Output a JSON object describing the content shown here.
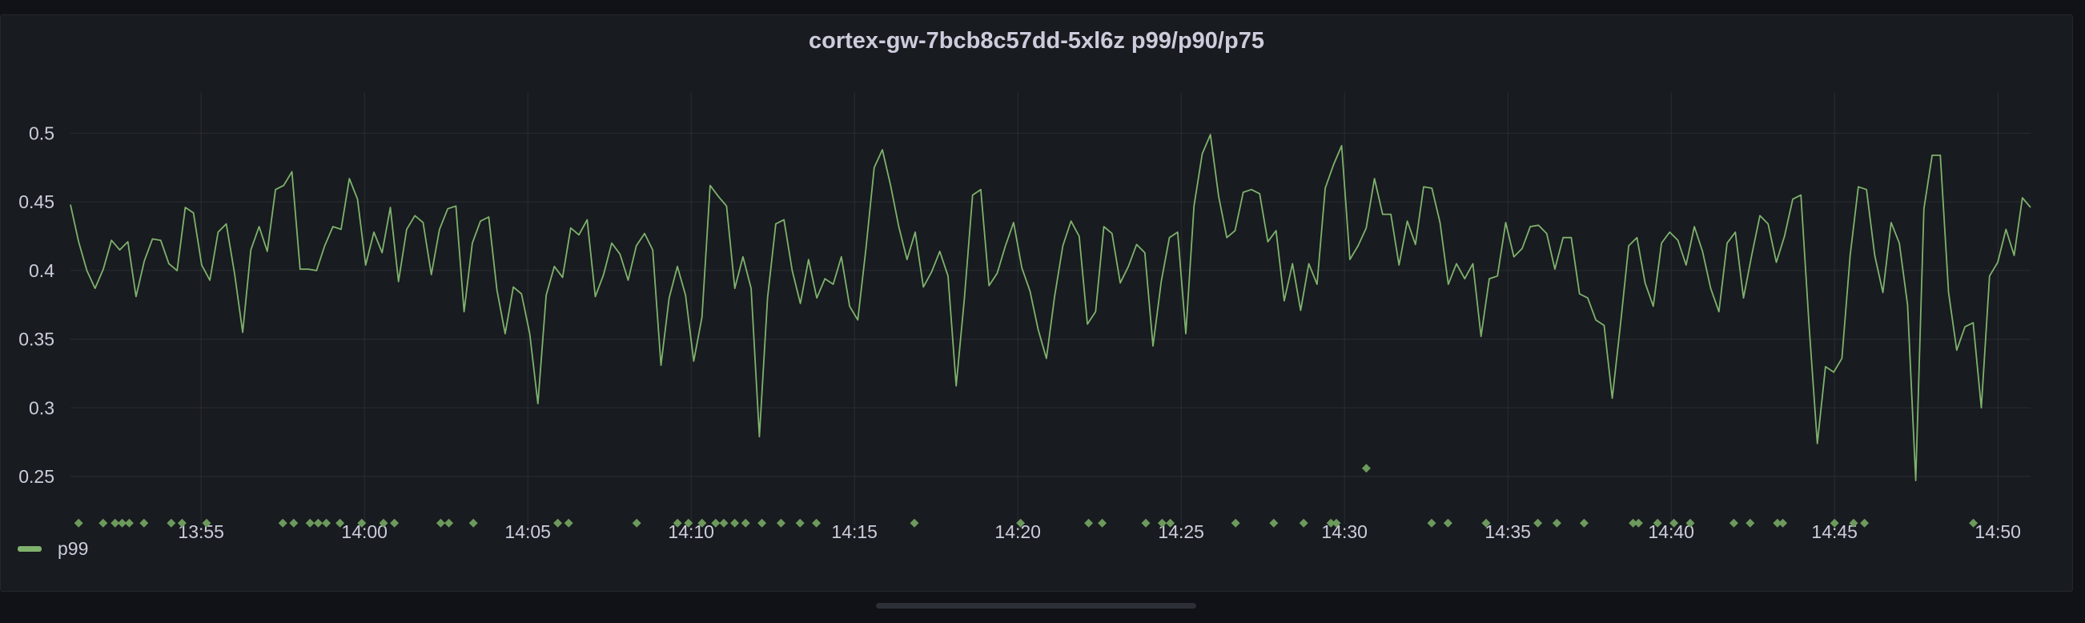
{
  "panel": {
    "title": "cortex-gw-7bcb8c57dd-5xl6z p99/p90/p75"
  },
  "legend": {
    "items": [
      {
        "label": "p99",
        "color": "#7eb26d"
      }
    ]
  },
  "chart_data": {
    "type": "line",
    "title": "cortex-gw-7bcb8c57dd-5xl6z p99/p90/p75",
    "xlabel": "",
    "ylabel": "",
    "x_start": "13:51",
    "x_end": "14:51",
    "x_ticks": [
      "13:55",
      "14:00",
      "14:05",
      "14:10",
      "14:15",
      "14:20",
      "14:25",
      "14:30",
      "14:35",
      "14:40",
      "14:45",
      "14:50"
    ],
    "y_ticks": [
      "0.25",
      "0.3",
      "0.35",
      "0.4",
      "0.45",
      "0.5"
    ],
    "ylim": [
      0.215,
      0.53
    ],
    "grid": true,
    "legend_placement": "bottom-left",
    "series": [
      {
        "name": "p99",
        "color": "#7eb26d",
        "values": [
          0.448,
          0.421,
          0.4,
          0.387,
          0.401,
          0.422,
          0.415,
          0.421,
          0.381,
          0.407,
          0.423,
          0.422,
          0.405,
          0.4,
          0.446,
          0.442,
          0.404,
          0.393,
          0.428,
          0.434,
          0.398,
          0.355,
          0.415,
          0.432,
          0.414,
          0.459,
          0.462,
          0.472,
          0.401,
          0.401,
          0.4,
          0.418,
          0.432,
          0.43,
          0.467,
          0.452,
          0.404,
          0.428,
          0.413,
          0.446,
          0.392,
          0.43,
          0.44,
          0.435,
          0.397,
          0.43,
          0.445,
          0.447,
          0.37,
          0.42,
          0.436,
          0.439,
          0.386,
          0.354,
          0.388,
          0.383,
          0.354,
          0.303,
          0.382,
          0.403,
          0.395,
          0.431,
          0.426,
          0.437,
          0.381,
          0.397,
          0.42,
          0.412,
          0.393,
          0.418,
          0.427,
          0.415,
          0.331,
          0.38,
          0.403,
          0.382,
          0.334,
          0.366,
          0.462,
          0.454,
          0.447,
          0.387,
          0.41,
          0.387,
          0.279,
          0.38,
          0.434,
          0.437,
          0.4,
          0.376,
          0.408,
          0.38,
          0.394,
          0.39,
          0.41,
          0.374,
          0.364,
          0.416,
          0.475,
          0.488,
          0.462,
          0.432,
          0.408,
          0.428,
          0.388,
          0.399,
          0.414,
          0.396,
          0.316,
          0.38,
          0.455,
          0.459,
          0.389,
          0.398,
          0.418,
          0.435,
          0.402,
          0.385,
          0.357,
          0.336,
          0.381,
          0.418,
          0.436,
          0.425,
          0.361,
          0.37,
          0.432,
          0.427,
          0.391,
          0.403,
          0.419,
          0.413,
          0.345,
          0.392,
          0.424,
          0.428,
          0.354,
          0.447,
          0.485,
          0.499,
          0.454,
          0.424,
          0.429,
          0.457,
          0.459,
          0.456,
          0.421,
          0.429,
          0.378,
          0.405,
          0.371,
          0.405,
          0.39,
          0.46,
          0.477,
          0.491,
          0.408,
          0.418,
          0.431,
          0.467,
          0.441,
          0.441,
          0.404,
          0.436,
          0.419,
          0.461,
          0.46,
          0.435,
          0.39,
          0.405,
          0.394,
          0.405,
          0.352,
          0.394,
          0.396,
          0.435,
          0.41,
          0.416,
          0.432,
          0.433,
          0.427,
          0.401,
          0.424,
          0.424,
          0.383,
          0.38,
          0.364,
          0.36,
          0.307,
          0.361,
          0.418,
          0.424,
          0.391,
          0.374,
          0.42,
          0.428,
          0.422,
          0.404,
          0.432,
          0.414,
          0.387,
          0.37,
          0.42,
          0.428,
          0.38,
          0.411,
          0.44,
          0.434,
          0.406,
          0.425,
          0.452,
          0.455,
          0.36,
          0.274,
          0.33,
          0.326,
          0.336,
          0.411,
          0.461,
          0.459,
          0.411,
          0.384,
          0.435,
          0.42,
          0.375,
          0.247,
          0.445,
          0.484,
          0.484,
          0.384,
          0.342,
          0.359,
          0.362,
          0.3,
          0.396,
          0.406,
          0.43,
          0.411,
          0.453,
          0.446
        ]
      }
    ],
    "annotations": {
      "marker_y": 0.216,
      "marker_times": [
        "13:51:15",
        "13:52:00",
        "13:52:22",
        "13:52:35",
        "13:52:48",
        "13:53:15",
        "13:54:05",
        "13:54:25",
        "13:55:10",
        "13:57:30",
        "13:57:50",
        "13:58:20",
        "13:58:35",
        "13:58:50",
        "13:59:15",
        "13:59:55",
        "14:00:35",
        "14:00:55",
        "14:02:20",
        "14:02:35",
        "14:03:20",
        "14:05:55",
        "14:06:15",
        "14:08:20",
        "14:09:35",
        "14:09:55",
        "14:10:20",
        "14:10:45",
        "14:11:00",
        "14:11:20",
        "14:11:40",
        "14:12:10",
        "14:12:45",
        "14:13:20",
        "14:13:50",
        "14:16:50",
        "14:20:05",
        "14:22:10",
        "14:22:35",
        "14:23:55",
        "14:24:25",
        "14:24:40",
        "14:26:40",
        "14:27:50",
        "14:28:45",
        "14:29:35",
        "14:29:45",
        "14:32:40",
        "14:33:10",
        "14:34:20",
        "14:35:55",
        "14:36:30",
        "14:37:20",
        "14:38:50",
        "14:39:00",
        "14:39:35",
        "14:40:05",
        "14:40:35",
        "14:41:55",
        "14:42:25",
        "14:43:15",
        "14:43:25",
        "14:45:00",
        "14:45:35",
        "14:45:55",
        "14:49:15"
      ],
      "extra_markers": [
        {
          "time": "14:30:40",
          "value": 0.256
        }
      ]
    }
  }
}
